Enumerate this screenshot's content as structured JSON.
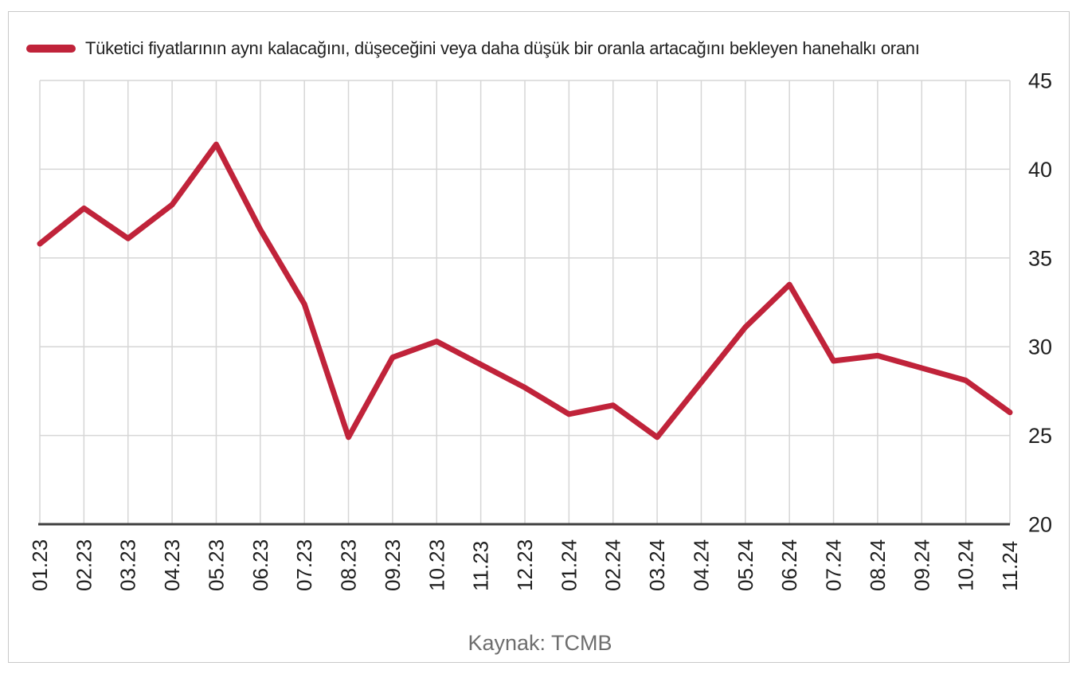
{
  "colors": {
    "line": "#c0233a",
    "grid": "#d6d6d6",
    "axis": "#3f3f3f",
    "text": "#1f1f1f",
    "muted_text": "#6e6e6e",
    "border": "#c9c9c9"
  },
  "chart_data": {
    "type": "line",
    "title": "",
    "legend": "Tüketici fiyatlarının aynı kalacağını, düşeceğini veya daha düşük bir oranla artacağını bekleyen hanehalkı oranı",
    "legend_position": "top-left",
    "categories": [
      "01.23",
      "02.23",
      "03.23",
      "04.23",
      "05.23",
      "06.23",
      "07.23",
      "08.23",
      "09.23",
      "10.23",
      "11.23",
      "12.23",
      "01.24",
      "02.24",
      "03.24",
      "04.24",
      "05.24",
      "06.24",
      "07.24",
      "08.24",
      "09.24",
      "10.24",
      "11.24"
    ],
    "values": [
      35.8,
      37.8,
      36.1,
      38.0,
      41.4,
      36.6,
      32.4,
      24.9,
      29.4,
      30.3,
      29.0,
      27.7,
      26.2,
      26.7,
      24.9,
      28.0,
      31.1,
      33.5,
      29.2,
      29.5,
      28.8,
      28.1,
      26.3
    ],
    "xlabel": "",
    "ylabel": "",
    "ylim": [
      20,
      45
    ],
    "y_ticks": [
      20,
      25,
      30,
      35,
      40,
      45
    ],
    "grid": true,
    "source": "Kaynak: TCMB"
  }
}
